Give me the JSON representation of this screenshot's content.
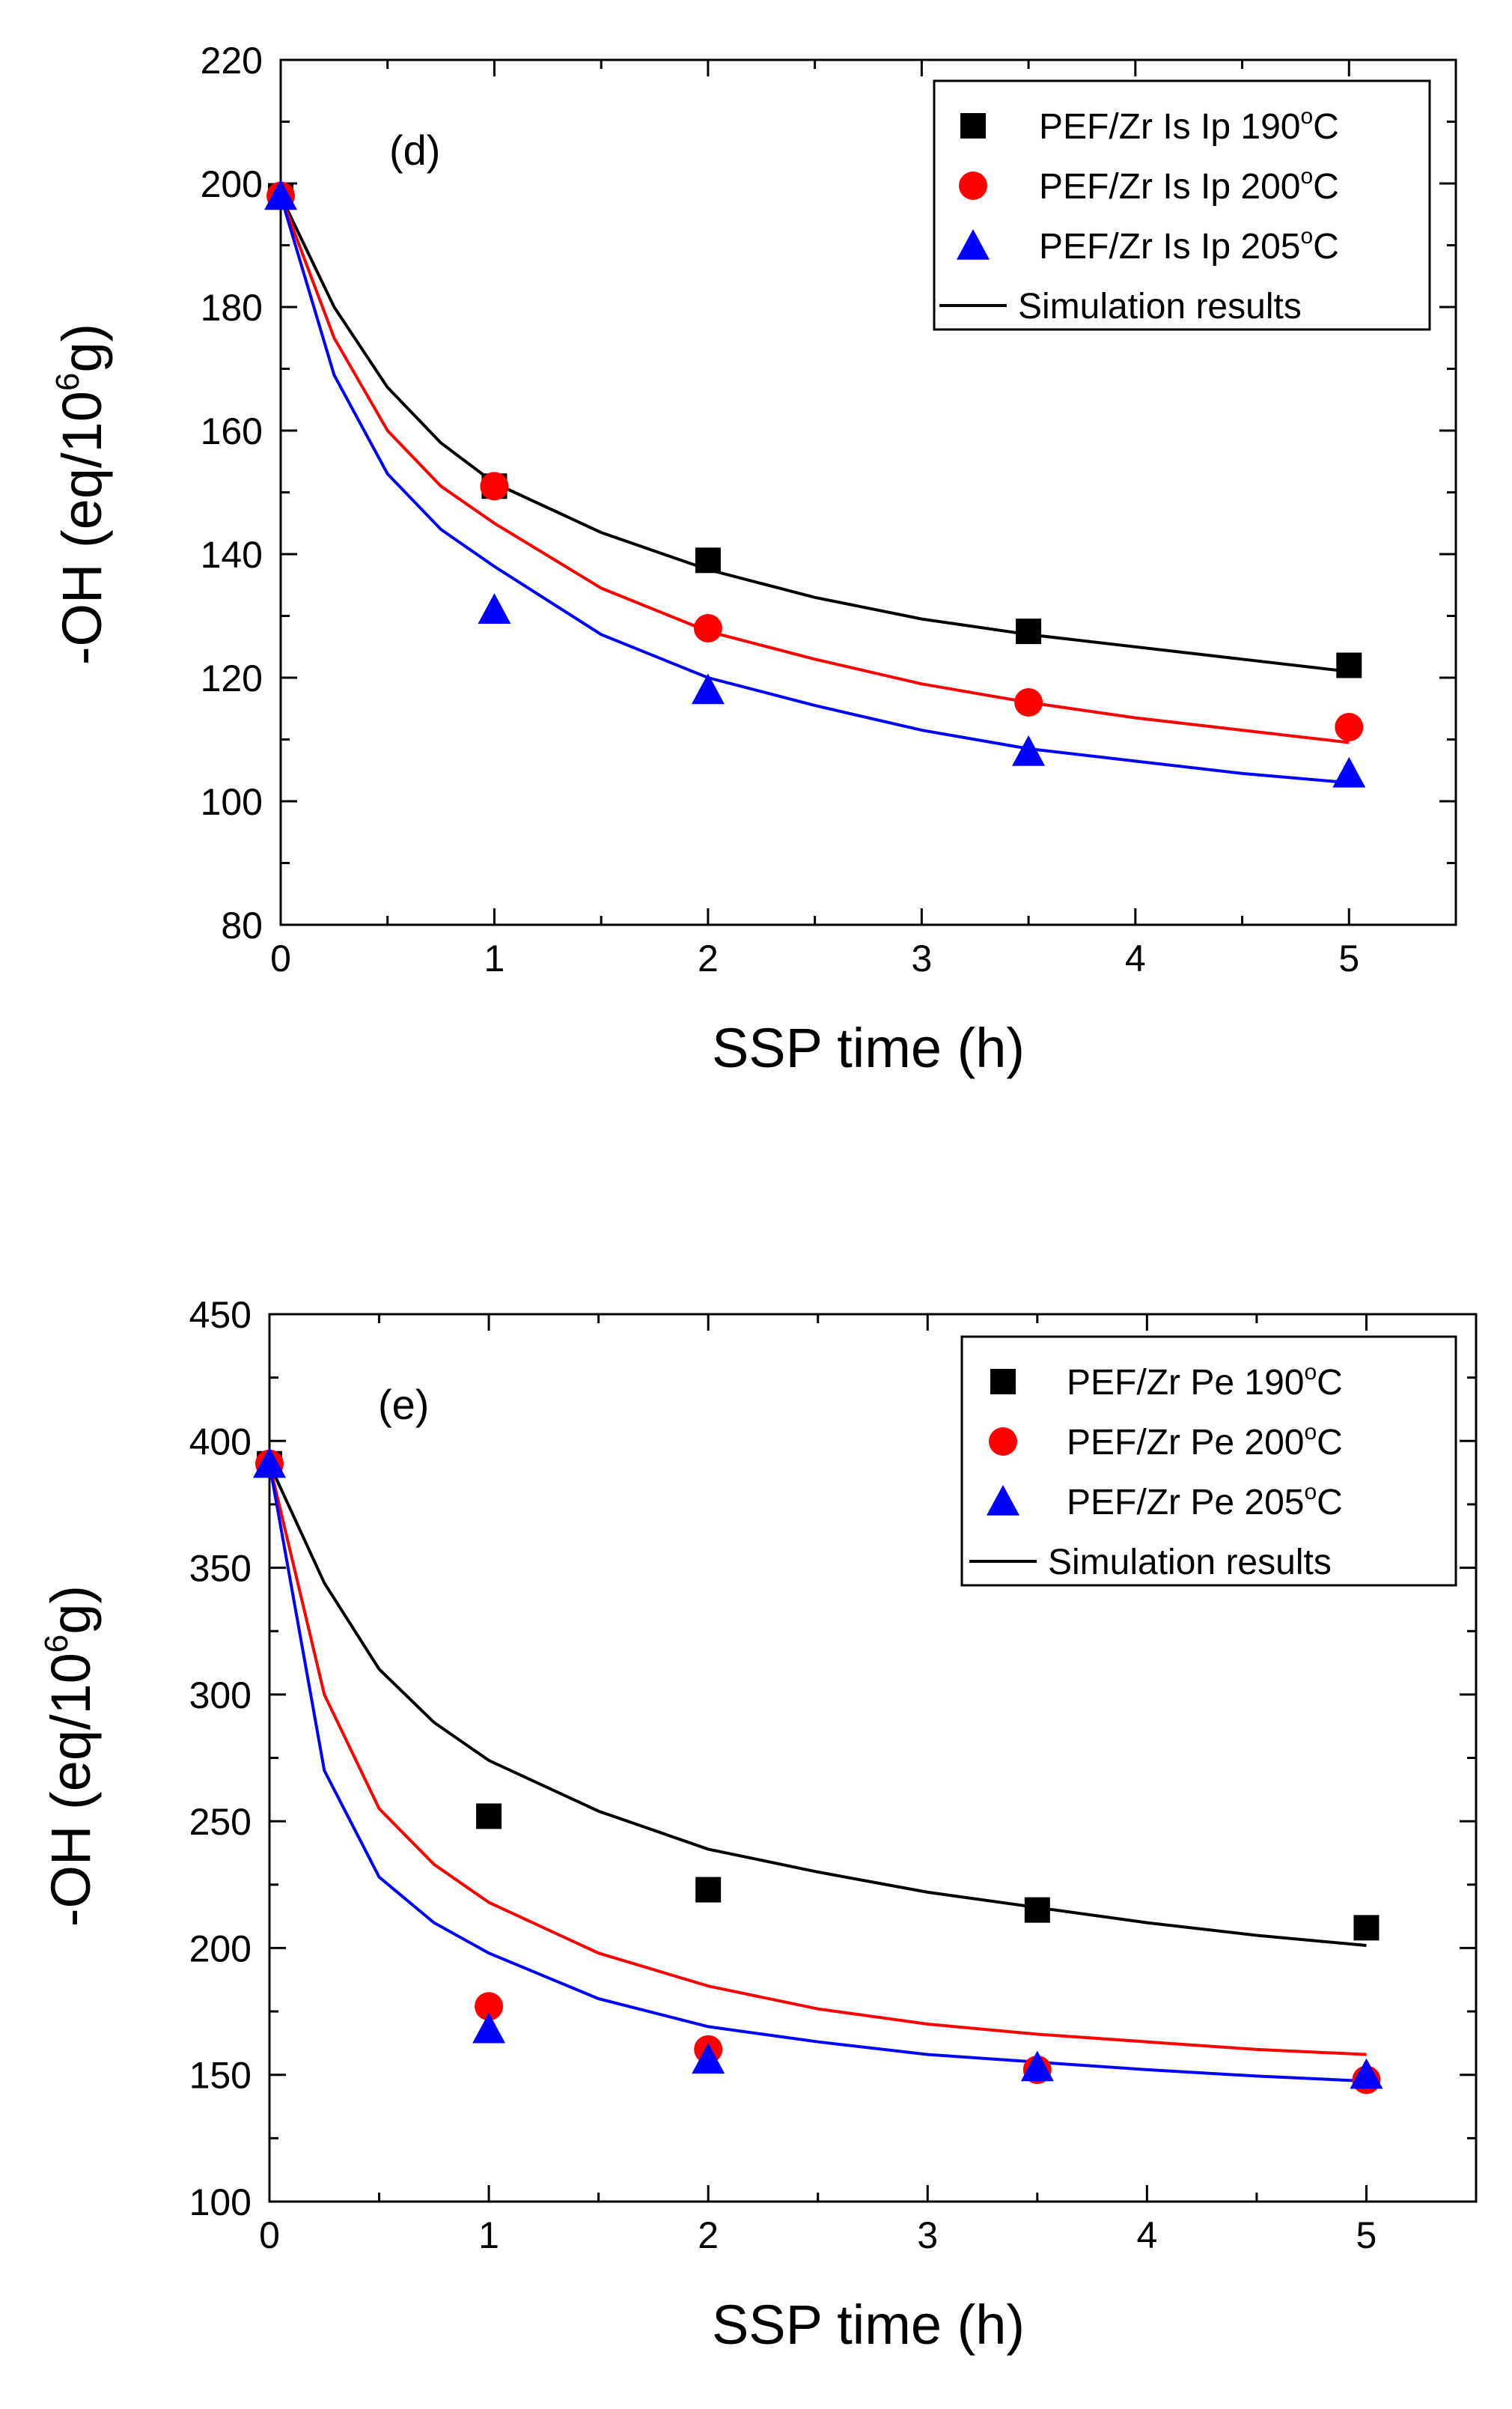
{
  "chart_data": [
    {
      "type": "scatter",
      "panel_label": "(d)",
      "xlabel": "SSP time (h)",
      "ylabel_parts": {
        "prefix": "-OH (eq/10",
        "sup": "6",
        "suffix": "g)"
      },
      "xlim": [
        0,
        5.5
      ],
      "ylim": [
        80,
        220
      ],
      "xticks": [
        0,
        1,
        2,
        3,
        4,
        5
      ],
      "yticks": [
        80,
        100,
        120,
        140,
        160,
        180,
        200,
        220
      ],
      "series": [
        {
          "name": "PEF/Zr Is Ip 190°C",
          "label_main": "PEF/Zr Is Ip 190",
          "label_sup": "o",
          "label_unit": "C",
          "marker": "square",
          "color": "#000000",
          "x": [
            0,
            1,
            2,
            3.5,
            5
          ],
          "y": [
            198,
            151,
            139,
            127.5,
            122
          ]
        },
        {
          "name": "PEF/Zr Is Ip 200°C",
          "label_main": "PEF/Zr Is Ip 200",
          "label_sup": "o",
          "label_unit": "C",
          "marker": "circle",
          "color": "#ff0000",
          "x": [
            0,
            1,
            2,
            3.5,
            5
          ],
          "y": [
            198,
            151,
            128,
            116,
            112
          ]
        },
        {
          "name": "PEF/Zr Is Ip 205°C",
          "label_main": "PEF/Zr Is Ip 205",
          "label_sup": "o",
          "label_unit": "C",
          "marker": "triangle",
          "color": "#0000ff",
          "x": [
            0,
            1,
            2,
            3.5,
            5
          ],
          "y": [
            198,
            131,
            118,
            108,
            104.5
          ]
        }
      ],
      "fits": [
        {
          "color": "#000000",
          "x": [
            0,
            0.25,
            0.5,
            0.75,
            1,
            1.5,
            2,
            2.5,
            3,
            3.5,
            4,
            4.5,
            5
          ],
          "y": [
            198,
            180,
            167,
            158,
            151.5,
            143.5,
            137.5,
            133,
            129.5,
            127,
            125,
            123,
            121
          ]
        },
        {
          "color": "#ff0000",
          "x": [
            0,
            0.25,
            0.5,
            0.75,
            1,
            1.5,
            2,
            2.5,
            3,
            3.5,
            4,
            4.5,
            5
          ],
          "y": [
            198,
            175,
            160,
            151,
            145,
            134.5,
            127.5,
            123,
            119,
            116,
            113.5,
            111.5,
            109.5
          ]
        },
        {
          "color": "#0000ff",
          "x": [
            0,
            0.25,
            0.5,
            0.75,
            1,
            1.5,
            2,
            2.5,
            3,
            3.5,
            4,
            4.5,
            5
          ],
          "y": [
            198,
            169,
            153,
            144,
            138,
            127,
            120,
            115.5,
            111.5,
            108.5,
            106.5,
            104.5,
            103
          ]
        }
      ],
      "fit_legend": "Simulation results",
      "legend_position": "top-right"
    },
    {
      "type": "scatter",
      "panel_label": "(e)",
      "xlabel": "SSP time (h)",
      "ylabel_parts": {
        "prefix": "-OH (eq/10",
        "sup": "6",
        "suffix": "g)"
      },
      "xlim": [
        0,
        5.5
      ],
      "ylim": [
        100,
        450
      ],
      "xticks": [
        0,
        1,
        2,
        3,
        4,
        5
      ],
      "yticks": [
        100,
        150,
        200,
        250,
        300,
        350,
        400,
        450
      ],
      "series": [
        {
          "name": "PEF/Zr Pe 190°C",
          "label_main": "PEF/Zr Pe 190",
          "label_sup": "o",
          "label_unit": "C",
          "marker": "square",
          "color": "#000000",
          "x": [
            0,
            1,
            2,
            3.5,
            5
          ],
          "y": [
            391,
            252,
            223,
            215,
            208
          ]
        },
        {
          "name": "PEF/Zr Pe 200°C",
          "label_main": "PEF/Zr Pe 200",
          "label_sup": "o",
          "label_unit": "C",
          "marker": "circle",
          "color": "#ff0000",
          "x": [
            0,
            1,
            2,
            3.5,
            5
          ],
          "y": [
            391,
            177,
            160,
            152,
            148
          ]
        },
        {
          "name": "PEF/Zr Pe 205°C",
          "label_main": "PEF/Zr Pe 205",
          "label_sup": "o",
          "label_unit": "C",
          "marker": "triangle",
          "color": "#0000ff",
          "x": [
            0,
            1,
            2,
            3.5,
            5
          ],
          "y": [
            391,
            168,
            156,
            153,
            150
          ]
        }
      ],
      "fits": [
        {
          "color": "#000000",
          "x": [
            0,
            0.25,
            0.5,
            0.75,
            1,
            1.5,
            2,
            2.5,
            3,
            3.5,
            4,
            4.5,
            5
          ],
          "y": [
            391,
            344,
            310,
            289,
            274,
            254,
            239,
            230,
            222,
            216,
            210,
            205,
            201
          ]
        },
        {
          "color": "#ff0000",
          "x": [
            0,
            0.25,
            0.5,
            0.75,
            1,
            1.5,
            2,
            2.5,
            3,
            3.5,
            4,
            4.5,
            5
          ],
          "y": [
            391,
            300,
            255,
            233,
            218,
            198,
            185,
            176,
            170,
            166,
            163,
            160,
            158
          ]
        },
        {
          "color": "#0000ff",
          "x": [
            0,
            0.25,
            0.5,
            0.75,
            1,
            1.5,
            2,
            2.5,
            3,
            3.5,
            4,
            4.5,
            5
          ],
          "y": [
            391,
            270,
            228,
            210,
            198,
            180,
            169,
            163,
            158,
            155,
            152,
            149.5,
            147.5
          ]
        }
      ],
      "fit_legend": "Simulation results",
      "legend_position": "top-right"
    }
  ]
}
